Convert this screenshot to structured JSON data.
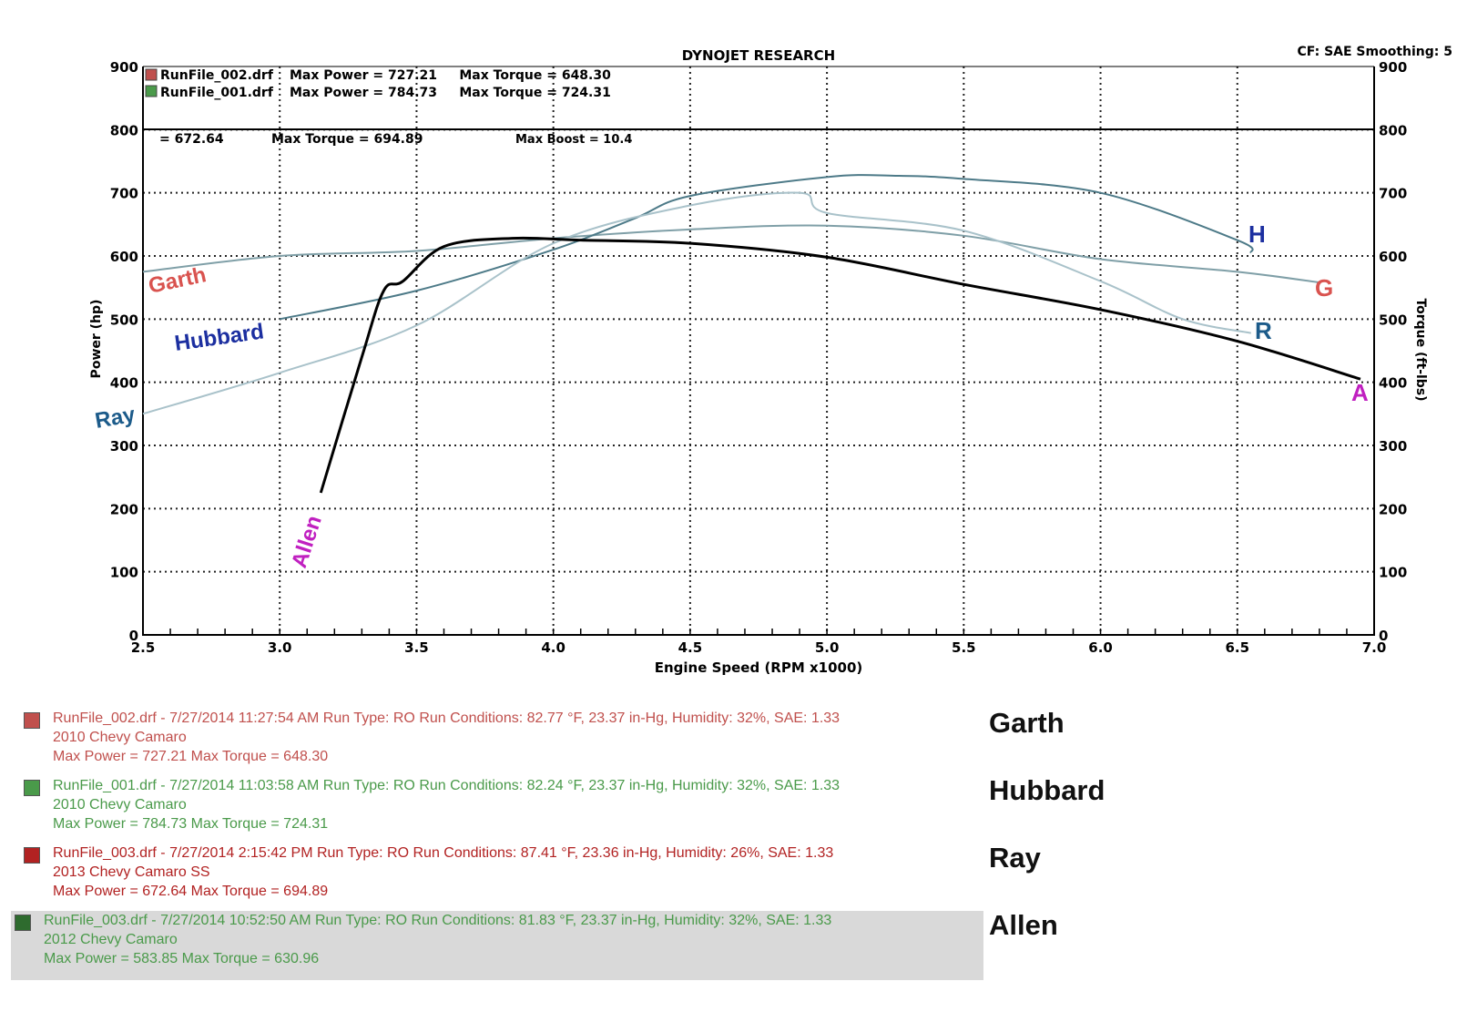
{
  "header": {
    "title": "DYNOJET RESEARCH",
    "settings": "CF: SAE  Smoothing: 5",
    "runs": [
      {
        "file": "RunFile_002.drf",
        "stats": "Max Power = 727.21     Max Torque = 648.30",
        "color": "#c0504d"
      },
      {
        "file": "RunFile_001.drf",
        "stats": "Max Power = 784.73     Max Torque = 724.31",
        "color": "#4a9a4a"
      }
    ],
    "inner_stats": [
      "= 672.64",
      "Max Torque = 694.89",
      "Max Boost = 10.4"
    ]
  },
  "chart_data": {
    "type": "line",
    "title": "DYNOJET RESEARCH",
    "xlabel": "Engine Speed (RPM x1000)",
    "ylabel": "Power (hp)",
    "y2label": "Torque (ft-lbs)",
    "xlim": [
      2.5,
      7.0
    ],
    "ylim": [
      0,
      900
    ],
    "y2lim": [
      0,
      900
    ],
    "xticks": [
      "2.5",
      "3.0",
      "3.5",
      "4.0",
      "4.5",
      "5.0",
      "5.5",
      "6.0",
      "6.5",
      "7.0"
    ],
    "yticks": [
      "0",
      "100",
      "200",
      "300",
      "400",
      "500",
      "600",
      "700",
      "800",
      "900"
    ],
    "grid": true,
    "series": [
      {
        "name": "Garth",
        "end_label": "G",
        "color": "#7f9fa7",
        "label_color": "#d9534f",
        "x": [
          2.5,
          3.0,
          3.5,
          4.0,
          4.5,
          5.0,
          5.5,
          6.0,
          6.5,
          6.8
        ],
        "y": [
          575,
          600,
          608,
          628,
          642,
          648,
          632,
          595,
          575,
          558
        ]
      },
      {
        "name": "Hubbard",
        "end_label": "H",
        "color": "#4d7a88",
        "label_color": "#1c2fa0",
        "x": [
          3.0,
          3.5,
          4.0,
          4.3,
          4.5,
          5.0,
          5.25,
          5.5,
          6.0,
          6.5,
          6.55
        ],
        "y": [
          500,
          545,
          610,
          660,
          695,
          725,
          727,
          722,
          700,
          625,
          605
        ]
      },
      {
        "name": "Ray",
        "end_label": "R",
        "color": "#a9c2ca",
        "label_color": "#1c5b8a",
        "x": [
          2.5,
          3.0,
          3.5,
          4.0,
          4.5,
          4.9,
          5.0,
          5.5,
          6.0,
          6.3,
          6.55
        ],
        "y": [
          350,
          415,
          490,
          620,
          680,
          700,
          668,
          640,
          560,
          500,
          478
        ]
      },
      {
        "name": "Allen",
        "end_label": "A",
        "color": "#000000",
        "label_color": "#c020c0",
        "x": [
          3.15,
          3.3,
          3.38,
          3.45,
          3.6,
          3.85,
          4.1,
          4.5,
          5.0,
          5.5,
          6.0,
          6.5,
          6.95
        ],
        "y": [
          225,
          440,
          545,
          560,
          615,
          628,
          625,
          620,
          598,
          555,
          515,
          465,
          405
        ]
      }
    ]
  },
  "legend": [
    {
      "who": "Garth",
      "color": "#c0504d",
      "text_color": "#c0504d",
      "line1": "RunFile_002.drf - 7/27/2014 11:27:54 AM  Run Type: RO  Run Conditions: 82.77 °F, 23.37 in-Hg,  Humidity:  32%, SAE: 1.33",
      "line2": "2010 Chevy Camaro",
      "line3": "Max Power = 727.21  Max Torque = 648.30"
    },
    {
      "who": "Hubbard",
      "color": "#4a9a4a",
      "text_color": "#4a9a4a",
      "line1": "RunFile_001.drf - 7/27/2014 11:03:58 AM  Run Type: RO  Run Conditions: 82.24 °F, 23.37 in-Hg,  Humidity:  32%, SAE: 1.33",
      "line2": "2010 Chevy Camaro",
      "line3": "Max Power = 784.73  Max Torque = 724.31"
    },
    {
      "who": "Ray",
      "color": "#b22222",
      "text_color": "#b22222",
      "line1": "RunFile_003.drf - 7/27/2014 2:15:42 PM  Run Type: RO  Run Conditions: 87.41 °F, 23.36 in-Hg,  Humidity:  26%, SAE: 1.33",
      "line2": "2013 Chevy Camaro SS",
      "line3": "Max Power = 672.64  Max Torque = 694.89"
    },
    {
      "who": "Allen",
      "color": "#2e6b2e",
      "text_color": "#4a9a4a",
      "line1": "RunFile_003.drf - 7/27/2014 10:52:50 AM  Run Type: RO  Run Conditions: 81.83 °F, 23.37 in-Hg,  Humidity:  32%, SAE: 1.33",
      "line2": "2012 Chevy Camaro",
      "line3": "Max Power = 583.85  Max Torque = 630.96"
    }
  ]
}
